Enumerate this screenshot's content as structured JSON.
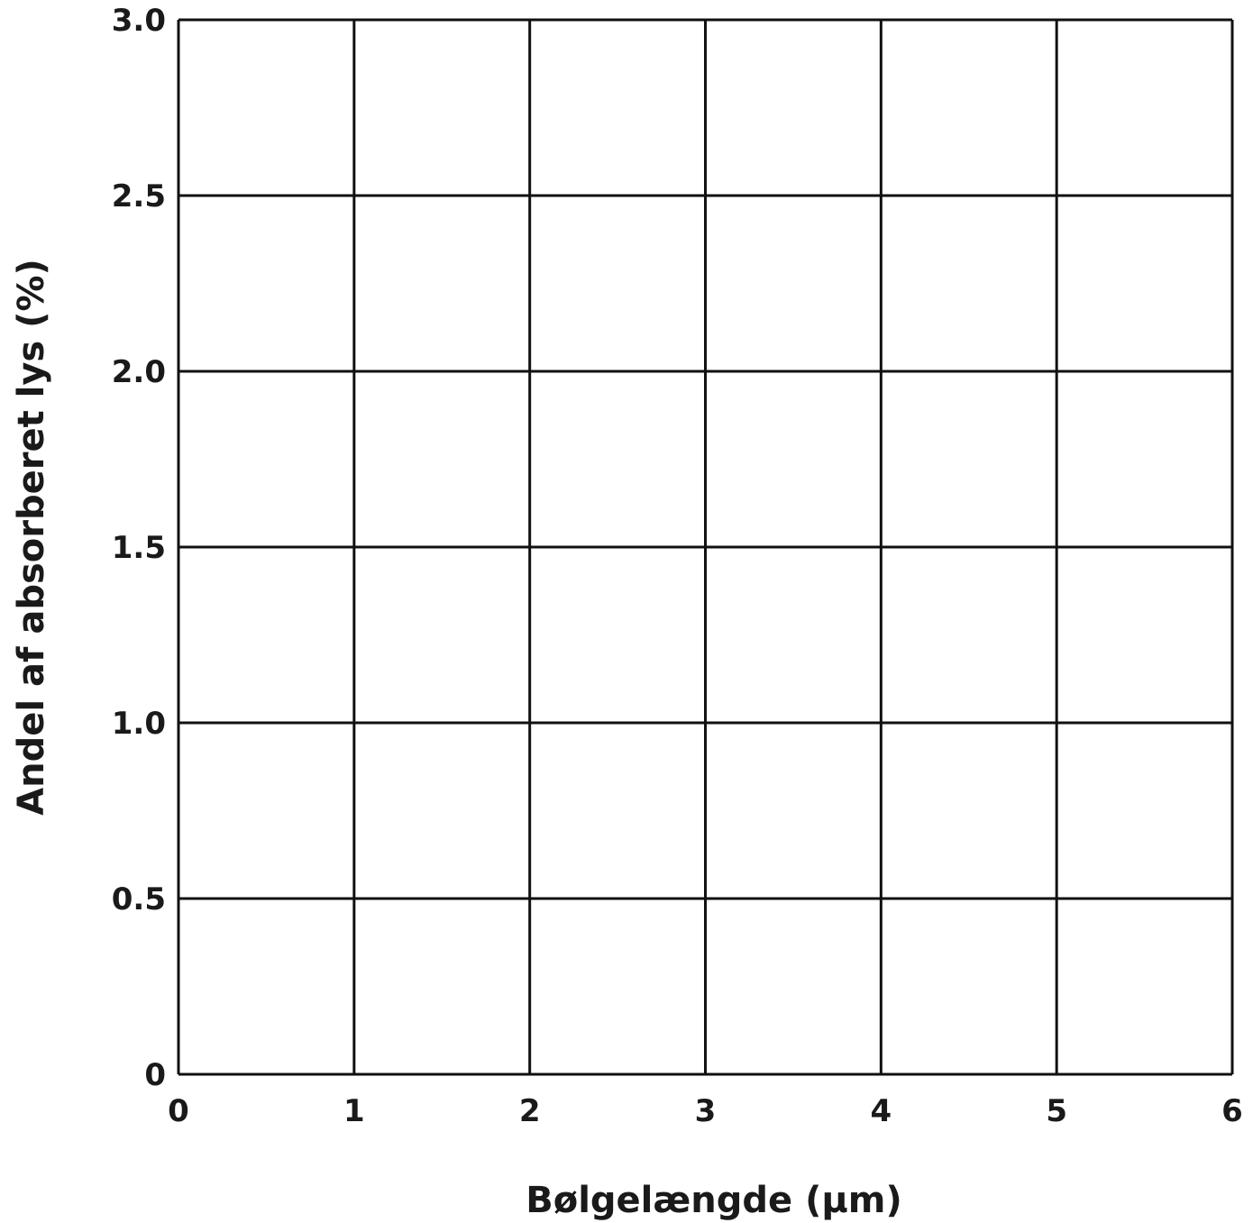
{
  "chart_data": {
    "type": "scatter",
    "title": "",
    "xlabel": "Bølgelængde (μm)",
    "ylabel": "Andel af absorberet lys (%)",
    "xlim": [
      0,
      6
    ],
    "ylim": [
      0,
      3.0
    ],
    "x_ticks": [
      "0",
      "1",
      "2",
      "3",
      "4",
      "5",
      "6"
    ],
    "y_ticks": [
      "0",
      "0.5",
      "1.0",
      "1.5",
      "2.0",
      "2.5",
      "3.0"
    ],
    "grid": true,
    "series": []
  }
}
